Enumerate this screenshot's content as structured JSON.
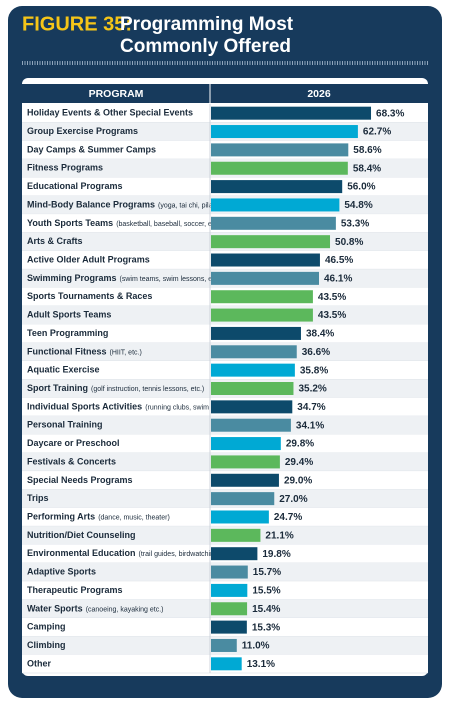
{
  "chart_data": {
    "type": "bar",
    "title_prefix": "FIGURE 35:",
    "title_lines": [
      "Programming Most",
      "Commonly Offered"
    ],
    "category_header": "PROGRAM",
    "categories": [
      "Holiday Events & Other Special Events",
      "Group Exercise Programs",
      "Day Camps & Summer Camps",
      "Fitness Programs",
      "Educational Programs",
      "Mind-Body Balance Programs",
      "Youth Sports Teams",
      "Arts & Crafts",
      "Active Older Adult Programs",
      "Swimming Programs",
      "Sports Tournaments & Races",
      "Adult Sports Teams",
      "Teen Programming",
      "Functional Fitness",
      "Aquatic Exercise",
      "Sport Training",
      "Individual Sports Activities",
      "Personal Training",
      "Daycare or Preschool",
      "Festivals & Concerts",
      "Special Needs Programs",
      "Trips",
      "Performing Arts",
      "Nutrition/Diet Counseling",
      "Environmental Education",
      "Adaptive Sports",
      "Therapeutic Programs",
      "Water Sports",
      "Camping",
      "Climbing",
      "Other"
    ],
    "category_notes": [
      null,
      null,
      null,
      null,
      null,
      "(yoga, tai chi, pilates, etc.)",
      "(basketball, baseball, soccer, etc.)",
      null,
      null,
      "(swim teams, swim lessons, etc.)",
      null,
      null,
      null,
      "(HIIT, etc.)",
      null,
      "(golf instruction, tennis lessons, etc.)",
      "(running clubs, swim clubs, etc.)",
      null,
      null,
      null,
      null,
      null,
      "(dance, music, theater)",
      null,
      "(trail guides, birdwatching, etc.)",
      null,
      null,
      "(canoeing, kayaking etc.)",
      null,
      null,
      null
    ],
    "series": [
      {
        "name": "2026",
        "values": [
          68.3,
          62.7,
          58.6,
          58.4,
          56.0,
          54.8,
          53.3,
          50.8,
          46.5,
          46.1,
          43.5,
          43.5,
          38.4,
          36.6,
          35.8,
          35.2,
          34.7,
          34.1,
          29.8,
          29.4,
          29.0,
          27.0,
          24.7,
          21.1,
          19.8,
          15.7,
          15.5,
          15.4,
          15.3,
          11.0,
          13.1
        ],
        "value_labels": [
          "68.3%",
          "62.7%",
          "58.6%",
          "58.4%",
          "56.0%",
          "54.8%",
          "53.3%",
          "50.8%",
          "46.5%",
          "46.1%",
          "43.5%",
          "43.5%",
          "38.4%",
          "36.6%",
          "35.8%",
          "35.2%",
          "34.7%",
          "34.1%",
          "29.8%",
          "29.4%",
          "29.0%",
          "27.0%",
          "24.7%",
          "21.1%",
          "19.8%",
          "15.7%",
          "15.5%",
          "15.4%",
          "15.3%",
          "11.0%",
          "13.1%"
        ],
        "colors": [
          "#0d4a6b",
          "#00a9d4",
          "#4a8ba1",
          "#5cb85c",
          "#0d4a6b",
          "#00a9d4",
          "#4a8ba1",
          "#5cb85c",
          "#0d4a6b",
          "#4a8ba1",
          "#5cb85c",
          "#5cb85c",
          "#0d4a6b",
          "#4a8ba1",
          "#00a9d4",
          "#5cb85c",
          "#0d4a6b",
          "#4a8ba1",
          "#00a9d4",
          "#5cb85c",
          "#0d4a6b",
          "#4a8ba1",
          "#00a9d4",
          "#5cb85c",
          "#0d4a6b",
          "#4a8ba1",
          "#00a9d4",
          "#5cb85c",
          "#0d4a6b",
          "#4a8ba1",
          "#00a9d4"
        ]
      }
    ],
    "xlim": [
      0,
      70
    ]
  }
}
